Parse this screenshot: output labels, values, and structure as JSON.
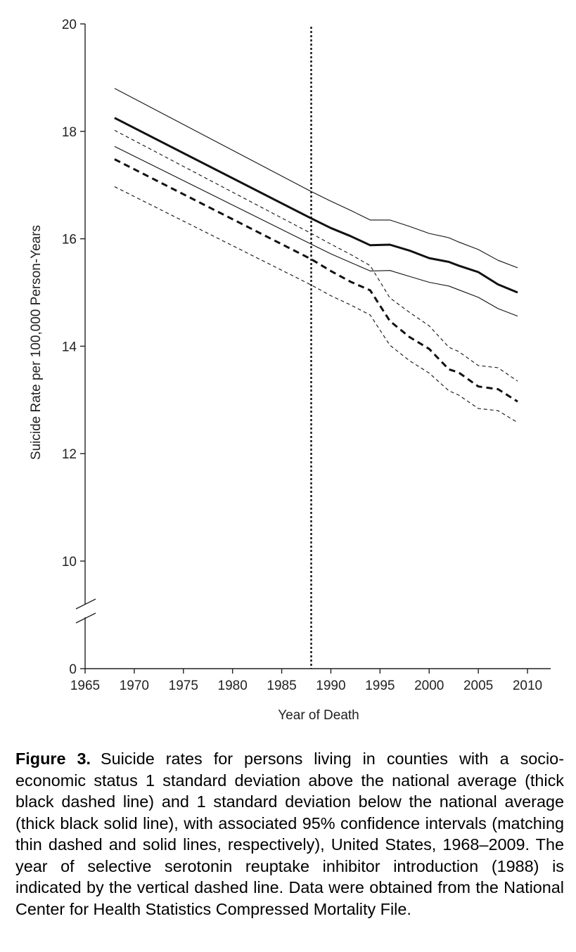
{
  "chart_data": {
    "type": "line",
    "xlabel": "Year of Death",
    "ylabel": "Suicide Rate  per 100,000 Person-Years",
    "xlim": [
      1965,
      2012
    ],
    "ylim": [
      0,
      20
    ],
    "axis_break": [
      9,
      10
    ],
    "xticks": [
      "1965",
      "1970",
      "1975",
      "1980",
      "1985",
      "1990",
      "1995",
      "2000",
      "2005",
      "2010"
    ],
    "yticks": [
      "0",
      "10",
      "12",
      "14",
      "16",
      "18",
      "20"
    ],
    "reference_line": {
      "x": 1988,
      "style": "dotted"
    },
    "x": [
      1968,
      1988,
      1990,
      1992,
      1994,
      1996,
      1998,
      2000,
      2002,
      2003,
      2005,
      2007,
      2009
    ],
    "series": [
      {
        "style": "thin-solid",
        "values": [
          18.8,
          16.88,
          16.7,
          16.53,
          16.35,
          16.35,
          16.23,
          16.1,
          16.02,
          15.94,
          15.8,
          15.6,
          15.46
        ]
      },
      {
        "style": "thick-solid",
        "values": [
          18.25,
          16.38,
          16.2,
          16.05,
          15.88,
          15.89,
          15.78,
          15.64,
          15.57,
          15.5,
          15.38,
          15.15,
          15.0
        ]
      },
      {
        "style": "thin-solid",
        "values": [
          17.72,
          15.9,
          15.72,
          15.56,
          15.4,
          15.41,
          15.3,
          15.19,
          15.12,
          15.05,
          14.91,
          14.7,
          14.56
        ]
      },
      {
        "style": "thin-dashed",
        "values": [
          18.02,
          16.1,
          15.9,
          15.71,
          15.5,
          14.9,
          14.63,
          14.38,
          13.98,
          13.9,
          13.64,
          13.6,
          13.35
        ]
      },
      {
        "style": "thick-dashed",
        "values": [
          17.48,
          15.62,
          15.4,
          15.2,
          15.04,
          14.47,
          14.17,
          13.95,
          13.57,
          13.51,
          13.25,
          13.2,
          12.97
        ]
      },
      {
        "style": "thin-dashed",
        "values": [
          16.97,
          15.14,
          14.94,
          14.77,
          14.58,
          14.02,
          13.73,
          13.5,
          13.17,
          13.09,
          12.84,
          12.8,
          12.58
        ]
      }
    ]
  },
  "caption": {
    "label": "Figure 3.",
    "text": "Suicide rates for persons living in counties with a socio-economic status 1 standard deviation above the national average (thick black dashed line) and 1 standard deviation below the national average (thick black solid line), with associated 95% confidence intervals (matching thin dashed and solid lines, respectively), United States, 1968–2009. The year of selective serotonin reuptake inhibitor introduction (1988) is indicated by the vertical dashed line. Data were obtained from the National Center for Health Statistics Compressed Mortality File."
  }
}
